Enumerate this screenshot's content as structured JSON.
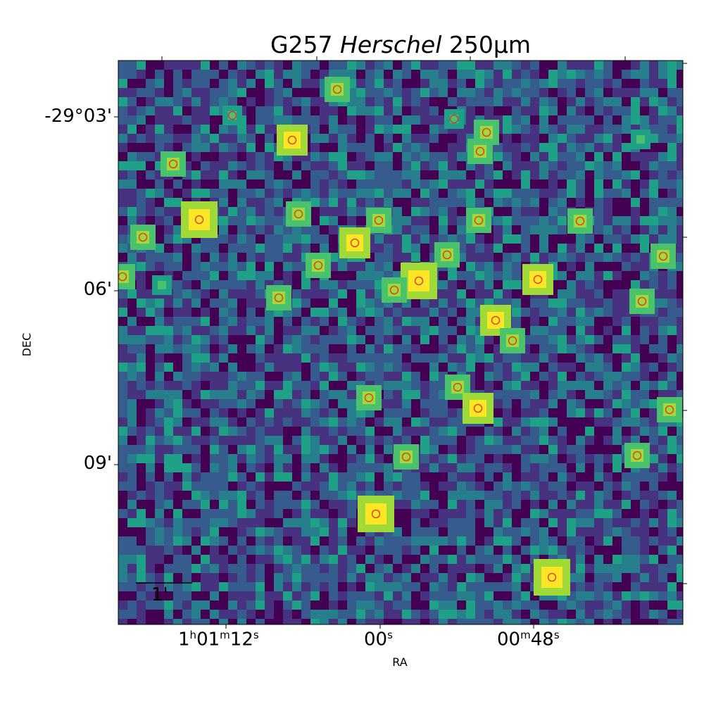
{
  "title": {
    "name": "G257",
    "instrument": "Herschel",
    "band": "250μm"
  },
  "axes": {
    "xlabel": "RA",
    "ylabel": "DEC",
    "x_ticks": [
      {
        "h": "1",
        "hu": "h",
        "m": "01",
        "mu": "m",
        "s": "12",
        "su": "s"
      },
      {
        "s": "00",
        "su": "s"
      },
      {
        "m": "00",
        "mu": "m",
        "s": "48",
        "su": "s"
      }
    ],
    "y_ticks": [
      "-29°03'",
      "06'",
      "09'"
    ]
  },
  "scale_bar": {
    "label": "1'"
  },
  "colors": {
    "colormap": "viridis",
    "marker_color": "#e0302c",
    "background_low": "#440154",
    "background_high": "#fde725"
  },
  "sources": {
    "marker_shape": "open-circle",
    "count": 35
  }
}
